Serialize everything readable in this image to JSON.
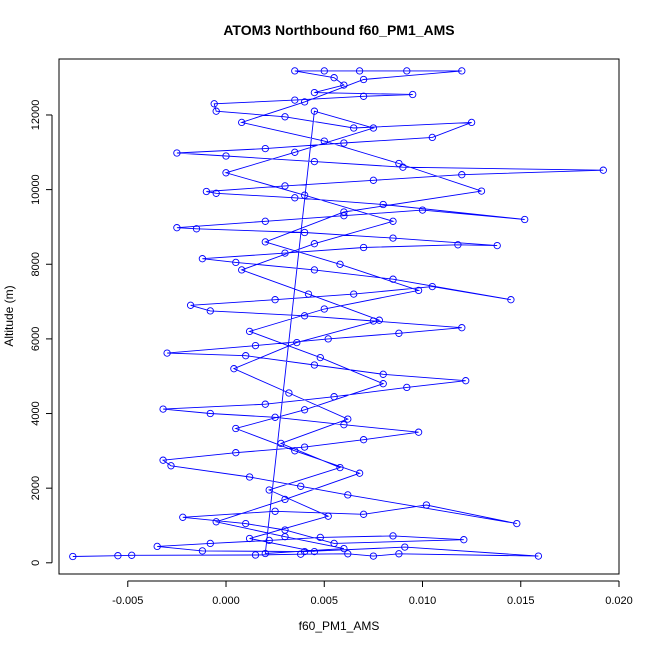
{
  "chart_data": {
    "type": "scatter",
    "title": "ATOM3 Northbound f60_PM1_AMS",
    "xlabel": "f60_PM1_AMS",
    "ylabel": "Altitude (m)",
    "xlim": [
      -0.0085,
      0.02
    ],
    "ylim": [
      -300,
      13500
    ],
    "xticks": [
      -0.005,
      0.0,
      0.005,
      0.01,
      0.015,
      0.02
    ],
    "xtick_labels": [
      "-0.005",
      "0.000",
      "0.005",
      "0.010",
      "0.015",
      "0.020"
    ],
    "yticks": [
      0,
      2000,
      4000,
      6000,
      8000,
      10000,
      12000
    ],
    "ytick_labels": [
      "0",
      "2000",
      "4000",
      "6000",
      "8000",
      "10000",
      "12000"
    ],
    "grid": false,
    "legend": "none",
    "marker": "open-circle",
    "connected": true,
    "series_color": "#0000ff",
    "points": [
      [
        -0.0078,
        170
      ],
      [
        -0.0055,
        190
      ],
      [
        -0.0048,
        200
      ],
      [
        0.0015,
        210
      ],
      [
        0.0038,
        230
      ],
      [
        0.0062,
        240
      ],
      [
        0.0075,
        180
      ],
      [
        0.0088,
        240
      ],
      [
        0.0159,
        180
      ],
      [
        0.0091,
        420
      ],
      [
        0.004,
        300
      ],
      [
        -0.0012,
        320
      ],
      [
        -0.0035,
        440
      ],
      [
        -0.0008,
        520
      ],
      [
        0.0022,
        600
      ],
      [
        0.0048,
        680
      ],
      [
        0.0085,
        720
      ],
      [
        0.0121,
        620
      ],
      [
        0.0055,
        520
      ],
      [
        0.003,
        880
      ],
      [
        0.001,
        1050
      ],
      [
        -0.0022,
        1220
      ],
      [
        0.0025,
        1380
      ],
      [
        0.007,
        1300
      ],
      [
        0.0102,
        1550
      ],
      [
        0.0148,
        1050
      ],
      [
        0.0062,
        1820
      ],
      [
        0.0038,
        2050
      ],
      [
        0.0012,
        2300
      ],
      [
        -0.0028,
        2600
      ],
      [
        -0.0032,
        2750
      ],
      [
        0.0005,
        2950
      ],
      [
        0.004,
        3100
      ],
      [
        0.007,
        3300
      ],
      [
        0.0098,
        3500
      ],
      [
        0.006,
        3700
      ],
      [
        0.0025,
        3900
      ],
      [
        -0.0008,
        4000
      ],
      [
        -0.0032,
        4120
      ],
      [
        0.002,
        4250
      ],
      [
        0.0055,
        4450
      ],
      [
        0.0092,
        4700
      ],
      [
        0.0122,
        4880
      ],
      [
        0.008,
        5050
      ],
      [
        0.0045,
        5300
      ],
      [
        0.001,
        5550
      ],
      [
        -0.003,
        5620
      ],
      [
        0.0015,
        5820
      ],
      [
        0.0052,
        6000
      ],
      [
        0.0088,
        6150
      ],
      [
        0.012,
        6300
      ],
      [
        0.0075,
        6480
      ],
      [
        0.004,
        6620
      ],
      [
        -0.0008,
        6750
      ],
      [
        -0.0018,
        6900
      ],
      [
        0.0025,
        7050
      ],
      [
        0.0065,
        7200
      ],
      [
        0.0105,
        7400
      ],
      [
        0.0145,
        7050
      ],
      [
        0.0085,
        7600
      ],
      [
        0.0045,
        7850
      ],
      [
        0.0005,
        8050
      ],
      [
        -0.0012,
        8150
      ],
      [
        0.003,
        8300
      ],
      [
        0.007,
        8450
      ],
      [
        0.0118,
        8520
      ],
      [
        0.0138,
        8500
      ],
      [
        0.0085,
        8700
      ],
      [
        0.004,
        8850
      ],
      [
        -0.0015,
        8950
      ],
      [
        -0.0025,
        8980
      ],
      [
        0.002,
        9150
      ],
      [
        0.006,
        9300
      ],
      [
        0.01,
        9450
      ],
      [
        0.0152,
        9200
      ],
      [
        0.008,
        9600
      ],
      [
        0.0035,
        9780
      ],
      [
        -0.0005,
        9900
      ],
      [
        -0.001,
        9950
      ],
      [
        0.003,
        10100
      ],
      [
        0.0075,
        10250
      ],
      [
        0.012,
        10400
      ],
      [
        0.0192,
        10520
      ],
      [
        0.009,
        10600
      ],
      [
        0.0045,
        10750
      ],
      [
        0.0,
        10900
      ],
      [
        -0.0025,
        10980
      ],
      [
        0.002,
        11100
      ],
      [
        0.006,
        11250
      ],
      [
        0.0105,
        11400
      ],
      [
        0.0125,
        11800
      ],
      [
        0.0065,
        11650
      ],
      [
        0.003,
        11950
      ],
      [
        -0.0005,
        12100
      ],
      [
        -0.0006,
        12300
      ],
      [
        0.0035,
        12400
      ],
      [
        0.007,
        12500
      ],
      [
        0.0095,
        12550
      ],
      [
        0.0045,
        12600
      ],
      [
        0.006,
        12800
      ],
      [
        0.0055,
        13000
      ],
      [
        0.0035,
        13180
      ],
      [
        0.005,
        13180
      ],
      [
        0.0068,
        13180
      ],
      [
        0.0092,
        13180
      ],
      [
        0.012,
        13180
      ],
      [
        0.007,
        12950
      ],
      [
        0.004,
        12350
      ],
      [
        0.0008,
        11800
      ],
      [
        0.005,
        11300
      ],
      [
        0.0088,
        10700
      ],
      [
        0.013,
        9960
      ],
      [
        0.006,
        9400
      ],
      [
        0.002,
        8600
      ],
      [
        0.0058,
        8000
      ],
      [
        0.0098,
        7300
      ],
      [
        0.005,
        6800
      ],
      [
        0.0012,
        6200
      ],
      [
        0.0048,
        5500
      ],
      [
        0.008,
        4800
      ],
      [
        0.004,
        4100
      ],
      [
        0.0005,
        3600
      ],
      [
        0.0035,
        3000
      ],
      [
        0.0068,
        2400
      ],
      [
        0.003,
        1700
      ],
      [
        -0.0005,
        1100
      ],
      [
        0.003,
        700
      ],
      [
        0.006,
        380
      ],
      [
        0.002,
        250
      ],
      [
        0.0045,
        12100
      ],
      [
        0.0075,
        11650
      ],
      [
        0.0035,
        11000
      ],
      [
        0.0,
        10450
      ],
      [
        0.004,
        9850
      ],
      [
        0.0085,
        9150
      ],
      [
        0.0045,
        8550
      ],
      [
        0.0008,
        7850
      ],
      [
        0.0042,
        7200
      ],
      [
        0.0078,
        6500
      ],
      [
        0.0036,
        5900
      ],
      [
        0.0004,
        5200
      ],
      [
        0.0032,
        4550
      ],
      [
        0.0062,
        3850
      ],
      [
        0.0028,
        3200
      ],
      [
        0.0058,
        2550
      ],
      [
        0.0022,
        1950
      ],
      [
        0.0052,
        1250
      ],
      [
        0.0012,
        650
      ],
      [
        0.0045,
        300
      ]
    ]
  }
}
